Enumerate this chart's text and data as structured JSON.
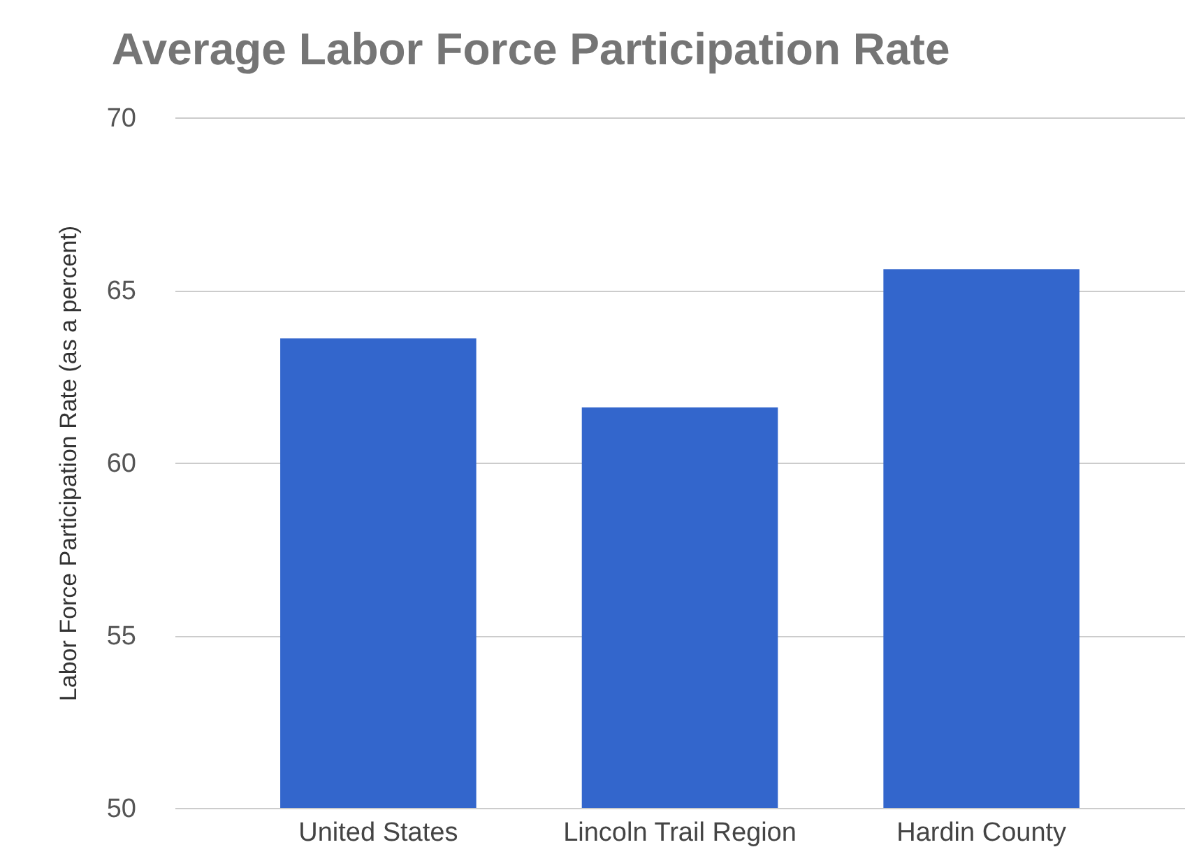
{
  "chart_data": {
    "type": "bar",
    "title": "Average Labor Force Participation Rate",
    "ylabel": "Labor Force Participation Rate (as a percent)",
    "categories": [
      "United States",
      "Lincoln Trail Region",
      "Hardin County"
    ],
    "values": [
      63.6,
      61.6,
      65.6
    ],
    "color": "#3366cc",
    "ylim": [
      50,
      70
    ],
    "yticks": [
      50,
      55,
      60,
      65,
      70
    ],
    "grid": "y"
  }
}
